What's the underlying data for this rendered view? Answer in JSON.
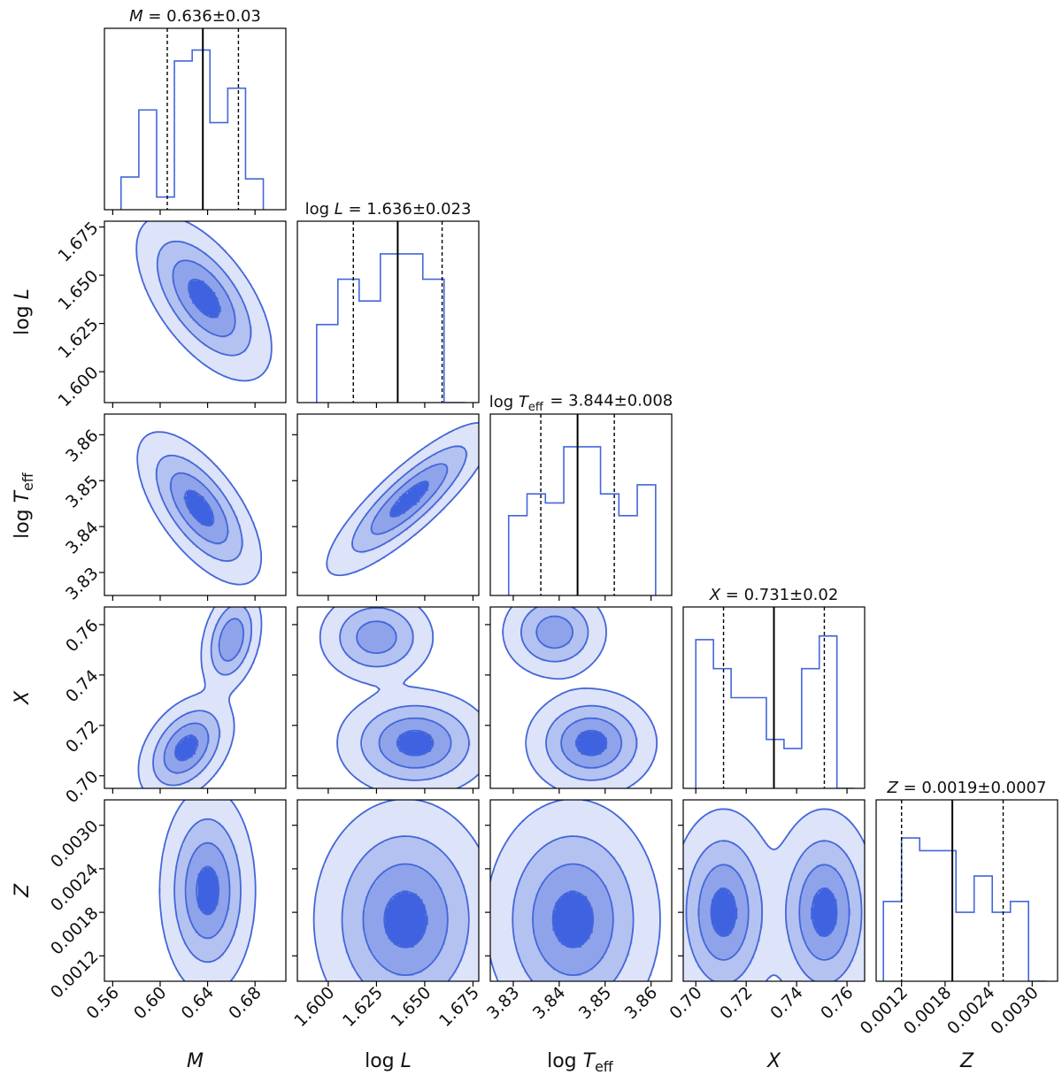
{
  "figure": {
    "type": "corner-plot",
    "colors": {
      "line": "#4466d9",
      "fill_levels": [
        "#dde3f8",
        "#b3c2f1",
        "#8ea3ea",
        "#3f62e0"
      ],
      "median_line": "#000000",
      "quantile_line": "#000000"
    }
  },
  "chart_data": {
    "type": "corner",
    "parameters": [
      {
        "id": "M",
        "label": "M",
        "title": "M = 0.636±0.03",
        "range": [
          0.553,
          0.706
        ],
        "ticks": [
          0.56,
          0.6,
          0.64,
          0.68
        ],
        "tick_labels": [
          "0.56",
          "0.60",
          "0.64",
          "0.68"
        ],
        "median": 0.636,
        "quantiles": [
          0.606,
          0.666
        ],
        "hist_edges": [
          0.567,
          0.582,
          0.597,
          0.612,
          0.627,
          0.642,
          0.657,
          0.672,
          0.687
        ],
        "hist_values": [
          0.18,
          0.55,
          0.07,
          0.82,
          0.88,
          0.48,
          0.67,
          0.17
        ]
      },
      {
        "id": "logL",
        "label": "log L",
        "title": "log L = 1.636±0.023",
        "range": [
          1.584,
          1.678
        ],
        "ticks": [
          1.6,
          1.625,
          1.65,
          1.675
        ],
        "tick_labels": [
          "1.600",
          "1.625",
          "1.650",
          "1.675"
        ],
        "median": 1.636,
        "quantiles": [
          1.613,
          1.659
        ],
        "hist_edges": [
          1.594,
          1.605,
          1.616,
          1.627,
          1.638,
          1.649,
          1.66,
          1.671
        ],
        "hist_values": [
          0.43,
          0.68,
          0.56,
          0.82,
          0.82,
          0.68,
          0.0
        ]
      },
      {
        "id": "logTeff",
        "label": "log T_eff",
        "title": "log T_eff = 3.844±0.008",
        "range": [
          3.825,
          3.8645
        ],
        "ticks": [
          3.83,
          3.84,
          3.85,
          3.86
        ],
        "tick_labels": [
          "3.83",
          "3.84",
          "3.85",
          "3.86"
        ],
        "median": 3.844,
        "quantiles": [
          3.836,
          3.852
        ],
        "hist_edges": [
          3.829,
          3.833,
          3.837,
          3.841,
          3.845,
          3.849,
          3.853,
          3.857,
          3.861
        ],
        "hist_values": [
          0.44,
          0.56,
          0.51,
          0.82,
          0.82,
          0.56,
          0.44,
          0.61
        ]
      },
      {
        "id": "X",
        "label": "X",
        "title": "X = 0.731±0.02",
        "range": [
          0.695,
          0.767
        ],
        "ticks": [
          0.7,
          0.72,
          0.74,
          0.76
        ],
        "tick_labels": [
          "0.70",
          "0.72",
          "0.74",
          "0.76"
        ],
        "median": 0.731,
        "quantiles": [
          0.711,
          0.751
        ],
        "hist_edges": [
          0.7,
          0.707,
          0.714,
          0.721,
          0.728,
          0.735,
          0.742,
          0.749,
          0.756,
          0.763
        ],
        "hist_values": [
          0.82,
          0.66,
          0.5,
          0.5,
          0.27,
          0.22,
          0.66,
          0.84,
          0.0
        ]
      },
      {
        "id": "Z",
        "label": "Z",
        "title": "Z = 0.0019±0.0007",
        "range": [
          0.00085,
          0.00335
        ],
        "ticks": [
          0.0012,
          0.0018,
          0.0024,
          0.003
        ],
        "tick_labels": [
          "0.0012",
          "0.0018",
          "0.0024",
          "0.0030"
        ],
        "median": 0.0019,
        "quantiles": [
          0.0012,
          0.0026
        ],
        "hist_edges": [
          0.00095,
          0.0012,
          0.00145,
          0.0017,
          0.00195,
          0.0022,
          0.00245,
          0.0027,
          0.00295,
          0.0032
        ],
        "hist_values": [
          0.44,
          0.79,
          0.72,
          0.72,
          0.38,
          0.58,
          0.38,
          0.44,
          0.0
        ]
      }
    ],
    "contours": [
      {
        "row": 1,
        "col": 0,
        "peaks": [
          {
            "x": 0.637,
            "y": 1.638,
            "sx": 0.024,
            "sy": 0.018,
            "rho": -0.6,
            "w": 1.0
          }
        ]
      },
      {
        "row": 2,
        "col": 0,
        "peaks": [
          {
            "x": 0.633,
            "y": 3.844,
            "sx": 0.022,
            "sy": 0.007,
            "rho": -0.65,
            "w": 1.0
          }
        ]
      },
      {
        "row": 2,
        "col": 1,
        "peaks": [
          {
            "x": 1.642,
            "y": 3.846,
            "sx": 0.018,
            "sy": 0.007,
            "rho": 0.85,
            "w": 1.0
          }
        ]
      },
      {
        "row": 3,
        "col": 0,
        "peaks": [
          {
            "x": 0.622,
            "y": 0.711,
            "sx": 0.017,
            "sy": 0.009,
            "rho": 0.4,
            "w": 1.0
          },
          {
            "x": 0.66,
            "y": 0.754,
            "sx": 0.011,
            "sy": 0.009,
            "rho": 0.3,
            "w": 0.85
          }
        ]
      },
      {
        "row": 3,
        "col": 1,
        "peaks": [
          {
            "x": 1.645,
            "y": 0.713,
            "sx": 0.017,
            "sy": 0.009,
            "rho": 0.0,
            "w": 1.0
          },
          {
            "x": 1.625,
            "y": 0.755,
            "sx": 0.013,
            "sy": 0.008,
            "rho": 0.0,
            "w": 0.75
          }
        ]
      },
      {
        "row": 3,
        "col": 2,
        "peaks": [
          {
            "x": 3.847,
            "y": 0.713,
            "sx": 0.006,
            "sy": 0.009,
            "rho": 0.0,
            "w": 1.0
          },
          {
            "x": 3.839,
            "y": 0.757,
            "sx": 0.005,
            "sy": 0.008,
            "rho": 0.0,
            "w": 0.75
          }
        ]
      },
      {
        "row": 4,
        "col": 0,
        "peaks": [
          {
            "x": 0.64,
            "y": 0.0021,
            "sx": 0.017,
            "sy": 0.0006,
            "rho": 0.0,
            "w": 1.0
          }
        ]
      },
      {
        "row": 4,
        "col": 1,
        "peaks": [
          {
            "x": 1.64,
            "y": 0.0017,
            "sx": 0.02,
            "sy": 0.0007,
            "rho": 0.0,
            "w": 1.0
          }
        ]
      },
      {
        "row": 4,
        "col": 2,
        "peaks": [
          {
            "x": 3.843,
            "y": 0.0017,
            "sx": 0.008,
            "sy": 0.0007,
            "rho": 0.0,
            "w": 1.0
          }
        ]
      },
      {
        "row": 4,
        "col": 3,
        "peaks": [
          {
            "x": 0.711,
            "y": 0.0018,
            "sx": 0.009,
            "sy": 0.0006,
            "rho": 0.0,
            "w": 1.0
          },
          {
            "x": 0.751,
            "y": 0.0018,
            "sx": 0.009,
            "sy": 0.0006,
            "rho": 0.0,
            "w": 1.0
          }
        ]
      }
    ]
  }
}
